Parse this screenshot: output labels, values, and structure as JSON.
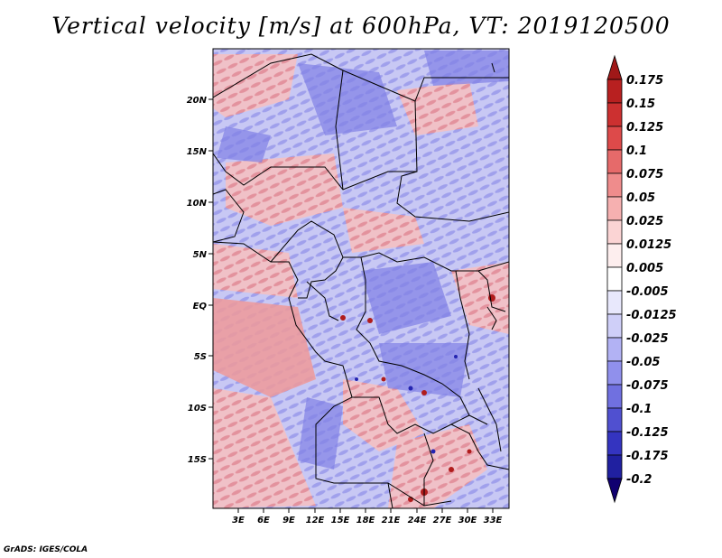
{
  "title": "Vertical velocity [m/s] at 600hPa, VT: 2019120500",
  "credit": "GrADS: IGES/COLA",
  "lat_ticks": [
    "20N",
    "15N",
    "10N",
    "5N",
    "EQ",
    "5S",
    "10S",
    "15S"
  ],
  "lon_ticks": [
    "3E",
    "6E",
    "9E",
    "12E",
    "15E",
    "18E",
    "21E",
    "24E",
    "27E",
    "30E",
    "33E"
  ],
  "colorbar": {
    "labels": [
      "0.175",
      "0.15",
      "0.125",
      "0.1",
      "0.075",
      "0.05",
      "0.025",
      "0.0125",
      "0.005",
      "-0.005",
      "-0.0125",
      "-0.025",
      "-0.05",
      "-0.075",
      "-0.1",
      "-0.125",
      "-0.175",
      "-0.2"
    ],
    "colors": [
      "#a01818",
      "#b82020",
      "#cc3030",
      "#dd4a4a",
      "#e66a6a",
      "#ef8c8c",
      "#f6b0b0",
      "#fbd4d4",
      "#fdeeee",
      "#ffffff",
      "#e8e8fc",
      "#cfcff8",
      "#b2b2f4",
      "#9090ec",
      "#7070e0",
      "#5050d0",
      "#3434c0",
      "#2020a0",
      "#100070"
    ]
  }
}
